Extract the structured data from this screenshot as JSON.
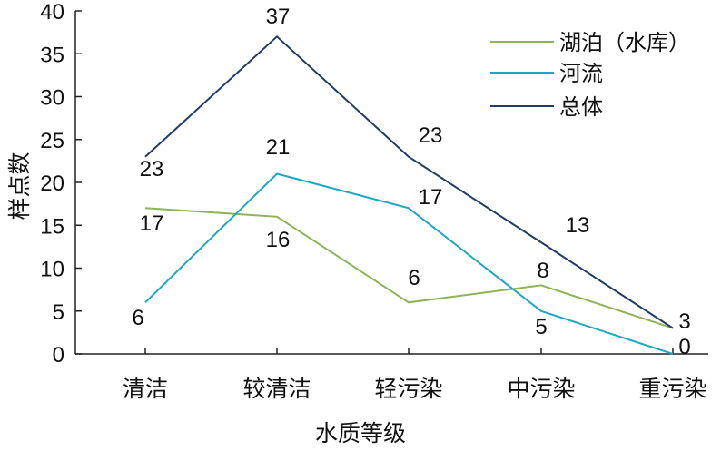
{
  "chart_data": {
    "type": "line",
    "categories": [
      "清洁",
      "较清洁",
      "轻污染",
      "中污染",
      "重污染"
    ],
    "series": [
      {
        "name": "湖泊（水库）",
        "values": [
          17,
          16,
          6,
          8,
          3
        ],
        "color": "#8db457"
      },
      {
        "name": "河流",
        "values": [
          6,
          21,
          17,
          5,
          0
        ],
        "color": "#1ea7c2"
      },
      {
        "name": "总体",
        "values": [
          23,
          37,
          23,
          13,
          3
        ],
        "color": "#1f3d66"
      }
    ],
    "data_labels": [
      {
        "category": "清洁",
        "text": "23"
      },
      {
        "category": "清洁",
        "text": "17"
      },
      {
        "category": "清洁",
        "text": "6"
      },
      {
        "category": "较清洁",
        "text": "37"
      },
      {
        "category": "较清洁",
        "text": "21"
      },
      {
        "category": "较清洁",
        "text": "16"
      },
      {
        "category": "轻污染",
        "text": "23"
      },
      {
        "category": "轻污染",
        "text": "17"
      },
      {
        "category": "轻污染",
        "text": "6"
      },
      {
        "category": "中污染",
        "text": "13"
      },
      {
        "category": "中污染",
        "text": "8"
      },
      {
        "category": "中污染",
        "text": "5"
      },
      {
        "category": "重污染",
        "text": "3"
      },
      {
        "category": "重污染",
        "text": "0"
      }
    ],
    "xlabel": "水质等级",
    "ylabel": "样点数",
    "ylim": [
      0,
      40
    ],
    "yticks": [
      "0",
      "5",
      "10",
      "15",
      "20",
      "25",
      "30",
      "35",
      "40"
    ],
    "grid": false,
    "legend_position": "top-right"
  }
}
